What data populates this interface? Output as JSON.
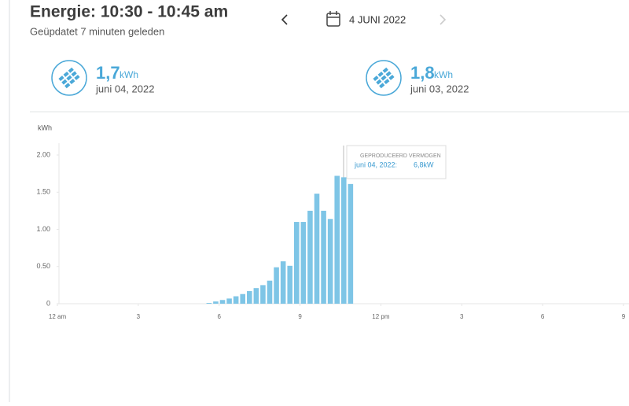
{
  "header": {
    "title": "Energie: 10:30 - 10:45 am",
    "subtitle": "Geüpdatet 7 minuten geleden",
    "date": "4 JUNI 2022"
  },
  "cards": [
    {
      "value": "1,7",
      "unit": "kWh",
      "date": "juni 04, 2022"
    },
    {
      "value": "1,8",
      "unit": "kWh",
      "date": "juni 03, 2022"
    }
  ],
  "chart_data": {
    "type": "bar",
    "y_label": "kWh",
    "color": "#7ec5e6",
    "x": [
      5.5,
      5.75,
      6.0,
      6.25,
      6.5,
      6.75,
      7.0,
      7.25,
      7.5,
      7.75,
      8.0,
      8.25,
      8.5,
      8.75,
      9.0,
      9.25,
      9.5,
      9.75,
      10.0,
      10.25,
      10.5,
      10.75
    ],
    "values": [
      0.01,
      0.03,
      0.05,
      0.07,
      0.1,
      0.13,
      0.17,
      0.21,
      0.25,
      0.31,
      0.49,
      0.57,
      0.51,
      1.1,
      1.1,
      1.25,
      1.48,
      1.25,
      1.14,
      1.72,
      1.7,
      1.61
    ],
    "xlim": [
      0,
      21
    ],
    "xticks": [
      {
        "value": 0,
        "label": "12 am"
      },
      3,
      6,
      9,
      {
        "value": 12,
        "label": "12 pm"
      },
      {
        "value": 15,
        "label": "3"
      },
      {
        "value": 18,
        "label": "6"
      },
      {
        "value": 21,
        "label": "9"
      }
    ],
    "ylim": [
      0,
      2
    ],
    "yticks": [
      0,
      {
        "value": 0.5,
        "label": "0.50"
      },
      {
        "value": 1,
        "label": "1.00"
      },
      {
        "value": 1.5,
        "label": "1.50"
      },
      {
        "value": 2,
        "label": "2.00"
      }
    ],
    "grid": false,
    "tooltip": {
      "title": "GEPRODUCEERD VERMOGEN",
      "label": "juni 04, 2022:",
      "value": "6,8kW"
    }
  }
}
